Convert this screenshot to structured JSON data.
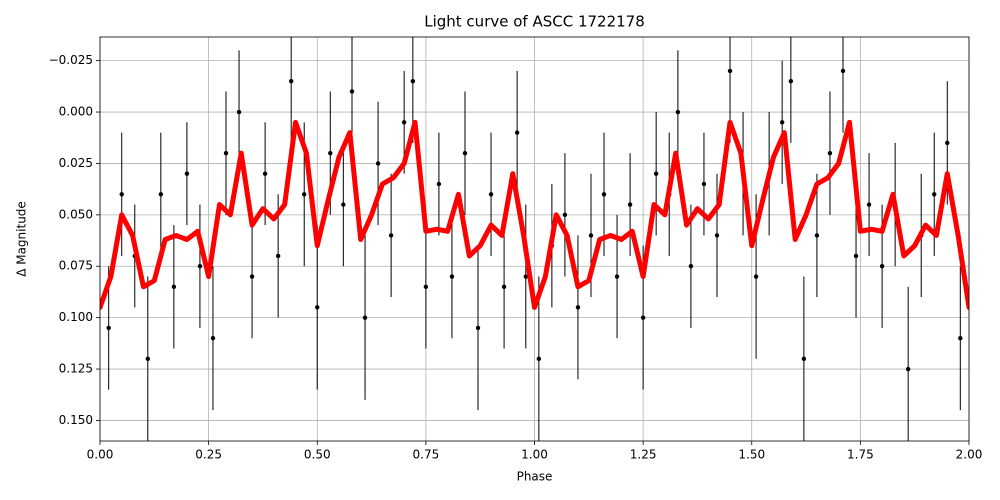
{
  "chart_data": {
    "type": "errorbar-line",
    "title": "Light curve of ASCC 1722178",
    "xlabel": "Phase",
    "ylabel": "Δ Magnitude",
    "xlim": [
      0,
      2
    ],
    "ylim": [
      -0.0365,
      0.16
    ],
    "y_inverted": true,
    "grid": true,
    "xticks": [
      {
        "value": 0,
        "label": "0.00"
      },
      {
        "value": 0.25,
        "label": "0.25"
      },
      {
        "value": 0.5,
        "label": "0.50"
      },
      {
        "value": 0.75,
        "label": "0.75"
      },
      {
        "value": 1,
        "label": "1.00"
      },
      {
        "value": 1.25,
        "label": "1.25"
      },
      {
        "value": 1.5,
        "label": "1.50"
      },
      {
        "value": 1.75,
        "label": "1.75"
      },
      {
        "value": 2,
        "label": "2.00"
      }
    ],
    "yticks": [
      {
        "value": -0.025,
        "label": "−0.025"
      },
      {
        "value": 0,
        "label": "0.000"
      },
      {
        "value": 0.025,
        "label": "0.025"
      },
      {
        "value": 0.05,
        "label": "0.050"
      },
      {
        "value": 0.075,
        "label": "0.075"
      },
      {
        "value": 0.1,
        "label": "0.100"
      },
      {
        "value": 0.125,
        "label": "0.125"
      },
      {
        "value": 0.15,
        "label": "0.150"
      }
    ],
    "series": [
      {
        "type": "errorbar",
        "color": "#000000",
        "x": [
          0.02,
          0.05,
          0.08,
          0.11,
          0.14,
          0.17,
          0.2,
          0.23,
          0.26,
          0.29,
          0.32,
          0.35,
          0.38,
          0.41,
          0.44,
          0.47,
          0.5,
          0.53,
          0.56,
          0.58,
          0.61,
          0.64,
          0.67,
          0.7,
          0.72,
          0.75,
          0.78,
          0.81,
          0.84,
          0.87,
          0.9,
          0.93,
          0.96,
          0.98,
          1.01,
          1.04,
          1.07,
          1.1,
          1.13,
          1.16,
          1.19,
          1.22,
          1.25,
          1.28,
          1.31,
          1.33,
          1.36,
          1.39,
          1.42,
          1.45,
          1.48,
          1.51,
          1.54,
          1.57,
          1.59,
          1.62,
          1.65,
          1.68,
          1.71,
          1.74,
          1.77,
          1.8,
          1.83,
          1.86,
          1.89,
          1.92,
          1.95,
          1.98
        ],
        "values": [
          0.105,
          0.04,
          0.07,
          0.12,
          0.04,
          0.085,
          0.03,
          0.075,
          0.11,
          0.02,
          0.0,
          0.08,
          0.03,
          0.07,
          -0.015,
          0.04,
          0.095,
          0.02,
          0.045,
          -0.01,
          0.1,
          0.025,
          0.06,
          0.005,
          -0.015,
          0.085,
          0.035,
          0.08,
          0.02,
          0.105,
          0.04,
          0.085,
          0.01,
          0.08,
          0.12,
          0.065,
          0.05,
          0.095,
          0.06,
          0.04,
          0.08,
          0.045,
          0.1,
          0.03,
          0.04,
          0.0,
          0.075,
          0.035,
          0.06,
          -0.02,
          0.03,
          0.08,
          0.03,
          0.005,
          -0.015,
          0.12,
          0.06,
          0.02,
          -0.02,
          0.07,
          0.045,
          0.075,
          0.045,
          0.125,
          0.06,
          0.04,
          0.015,
          0.11
        ],
        "errors": [
          0.03,
          0.03,
          0.025,
          0.04,
          0.03,
          0.03,
          0.025,
          0.03,
          0.035,
          0.03,
          0.03,
          0.03,
          0.025,
          0.03,
          0.03,
          0.035,
          0.04,
          0.03,
          0.03,
          0.03,
          0.04,
          0.03,
          0.03,
          0.025,
          0.03,
          0.03,
          0.025,
          0.03,
          0.03,
          0.04,
          0.03,
          0.03,
          0.03,
          0.035,
          0.04,
          0.03,
          0.03,
          0.035,
          0.03,
          0.03,
          0.03,
          0.025,
          0.035,
          0.03,
          0.03,
          0.03,
          0.03,
          0.025,
          0.03,
          0.035,
          0.03,
          0.04,
          0.03,
          0.03,
          0.03,
          0.04,
          0.03,
          0.03,
          0.03,
          0.03,
          0.025,
          0.03,
          0.03,
          0.04,
          0.03,
          0.03,
          0.03,
          0.035
        ]
      },
      {
        "type": "line",
        "color": "#ff0000",
        "x": [
          0,
          0.025,
          0.05,
          0.075,
          0.1,
          0.125,
          0.15,
          0.175,
          0.2,
          0.225,
          0.25,
          0.275,
          0.3,
          0.325,
          0.35,
          0.375,
          0.4,
          0.425,
          0.45,
          0.475,
          0.5,
          0.525,
          0.55,
          0.575,
          0.6,
          0.625,
          0.65,
          0.675,
          0.7,
          0.725,
          0.75,
          0.775,
          0.8,
          0.825,
          0.85,
          0.875,
          0.9,
          0.925,
          0.95,
          0.975,
          1,
          1.025,
          1.05,
          1.075,
          1.1,
          1.125,
          1.15,
          1.175,
          1.2,
          1.225,
          1.25,
          1.275,
          1.3,
          1.325,
          1.35,
          1.375,
          1.4,
          1.425,
          1.45,
          1.475,
          1.5,
          1.525,
          1.55,
          1.575,
          1.6,
          1.625,
          1.65,
          1.675,
          1.7,
          1.725,
          1.75,
          1.775,
          1.8,
          1.825,
          1.85,
          1.875,
          1.9,
          1.925,
          1.95,
          1.975,
          2
        ],
        "values": [
          0.095,
          0.08,
          0.05,
          0.06,
          0.085,
          0.082,
          0.062,
          0.06,
          0.062,
          0.058,
          0.08,
          0.045,
          0.05,
          0.02,
          0.055,
          0.047,
          0.052,
          0.045,
          0.005,
          0.02,
          0.065,
          0.043,
          0.022,
          0.01,
          0.062,
          0.05,
          0.035,
          0.032,
          0.025,
          0.005,
          0.058,
          0.057,
          0.058,
          0.04,
          0.07,
          0.065,
          0.055,
          0.06,
          0.03,
          0.06,
          0.095,
          0.08,
          0.05,
          0.06,
          0.085,
          0.082,
          0.062,
          0.06,
          0.062,
          0.058,
          0.08,
          0.045,
          0.05,
          0.02,
          0.055,
          0.047,
          0.052,
          0.045,
          0.005,
          0.02,
          0.065,
          0.043,
          0.022,
          0.01,
          0.062,
          0.05,
          0.035,
          0.032,
          0.025,
          0.005,
          0.058,
          0.057,
          0.058,
          0.04,
          0.07,
          0.065,
          0.055,
          0.06,
          0.03,
          0.06,
          0.095
        ]
      }
    ]
  }
}
